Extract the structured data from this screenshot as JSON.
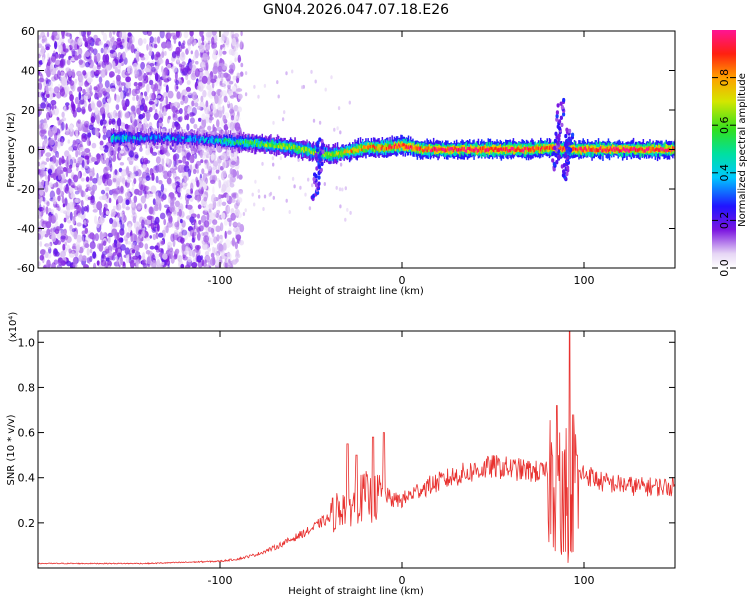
{
  "title": "GN04.2026.047.07.18.E26",
  "chart_data": [
    {
      "type": "heatmap",
      "name": "spectrogram",
      "xlabel": "Height of straight line (km)",
      "ylabel": "Frequency (Hz)",
      "xlim": [
        -200,
        150
      ],
      "ylim": [
        -60,
        60
      ],
      "x_ticks": [
        -100,
        0,
        100
      ],
      "x_tick_labels": [
        "-100",
        "0",
        "100"
      ],
      "y_ticks": [
        60,
        40,
        20,
        0,
        -20,
        -40,
        -60
      ],
      "y_tick_labels": [
        "60",
        "40",
        "20",
        "0",
        "-20",
        "-40",
        "-60"
      ],
      "colorbar": {
        "label": "Normalized spectral amplitude",
        "range": [
          0,
          1
        ],
        "ticks": [
          0.0,
          0.2,
          0.4,
          0.6,
          0.8
        ],
        "tick_labels": [
          "0.0",
          "0.2",
          "0.4",
          "0.6",
          "0.8"
        ]
      },
      "ridge_center_hz": [
        {
          "x": -160,
          "hz": 6,
          "amp": 0.45
        },
        {
          "x": -140,
          "hz": 6,
          "amp": 0.3
        },
        {
          "x": -110,
          "hz": 5,
          "amp": 0.35
        },
        {
          "x": -95,
          "hz": 4,
          "amp": 0.45
        },
        {
          "x": -80,
          "hz": 3,
          "amp": 0.55
        },
        {
          "x": -70,
          "hz": 2,
          "amp": 0.6
        },
        {
          "x": -60,
          "hz": 1,
          "amp": 0.65
        },
        {
          "x": -50,
          "hz": -1,
          "amp": 0.6
        },
        {
          "x": -40,
          "hz": -3,
          "amp": 0.65
        },
        {
          "x": -30,
          "hz": -1,
          "amp": 0.75
        },
        {
          "x": -20,
          "hz": 1,
          "amp": 0.8
        },
        {
          "x": -10,
          "hz": 1,
          "amp": 0.85
        },
        {
          "x": 0,
          "hz": 2,
          "amp": 0.9
        },
        {
          "x": 10,
          "hz": 0,
          "amp": 0.9
        },
        {
          "x": 30,
          "hz": 0,
          "amp": 0.95
        },
        {
          "x": 50,
          "hz": 0,
          "amp": 0.95
        },
        {
          "x": 70,
          "hz": 0,
          "amp": 0.95
        },
        {
          "x": 80,
          "hz": 1,
          "amp": 0.9
        },
        {
          "x": 90,
          "hz": 0,
          "amp": 0.95
        },
        {
          "x": 110,
          "hz": 0,
          "amp": 0.95
        },
        {
          "x": 130,
          "hz": 0,
          "amp": 0.95
        },
        {
          "x": 150,
          "hz": 0,
          "amp": 0.95
        }
      ],
      "noise_region_x": [
        -200,
        -88
      ],
      "spur_events": [
        {
          "x": -45,
          "hz_low": -25,
          "hz_high": 5
        },
        {
          "x": 85,
          "hz_low": -10,
          "hz_high": 25
        },
        {
          "x": 91,
          "hz_low": -15,
          "hz_high": 10
        }
      ]
    },
    {
      "type": "line",
      "name": "snr",
      "xlabel": "Height of straight line (km)",
      "ylabel": "SNR (10 * v/v)",
      "y_scale_note": "(x10⁴)",
      "xlim": [
        -200,
        150
      ],
      "ylim": [
        0.0,
        1.05
      ],
      "x_ticks": [
        -100,
        0,
        100
      ],
      "x_tick_labels": [
        "-100",
        "0",
        "100"
      ],
      "y_ticks": [
        0.2,
        0.4,
        0.6,
        0.8,
        1.0
      ],
      "y_tick_labels": [
        "0.2",
        "0.4",
        "0.6",
        "0.8",
        "1.0"
      ],
      "series": [
        {
          "name": "SNR",
          "color": "#e8312f",
          "x": [
            -200,
            -180,
            -160,
            -140,
            -120,
            -100,
            -90,
            -80,
            -70,
            -60,
            -50,
            -45,
            -40,
            -33,
            -30,
            -25,
            -20,
            -16,
            -10,
            -5,
            0,
            10,
            20,
            30,
            40,
            50,
            60,
            70,
            80,
            85,
            88,
            90,
            92,
            94,
            96,
            100,
            110,
            120,
            130,
            140,
            150
          ],
          "values": [
            0.02,
            0.02,
            0.02,
            0.02,
            0.025,
            0.03,
            0.04,
            0.06,
            0.09,
            0.13,
            0.17,
            0.2,
            0.22,
            0.28,
            0.27,
            0.3,
            0.32,
            0.3,
            0.33,
            0.3,
            0.3,
            0.35,
            0.38,
            0.41,
            0.43,
            0.45,
            0.44,
            0.43,
            0.42,
            0.38,
            0.3,
            0.35,
            0.25,
            0.3,
            0.4,
            0.42,
            0.38,
            0.37,
            0.36,
            0.36,
            0.36
          ],
          "peaks": [
            {
              "x": -30,
              "value": 0.55
            },
            {
              "x": -25,
              "value": 0.5
            },
            {
              "x": -16,
              "value": 0.58
            },
            {
              "x": -10,
              "value": 0.6
            },
            {
              "x": 85,
              "value": 0.72
            },
            {
              "x": 90,
              "value": 0.62
            },
            {
              "x": 92,
              "value": 1.05
            },
            {
              "x": 94,
              "value": 0.68
            },
            {
              "x": 96,
              "value": 0.5
            }
          ]
        }
      ]
    }
  ]
}
